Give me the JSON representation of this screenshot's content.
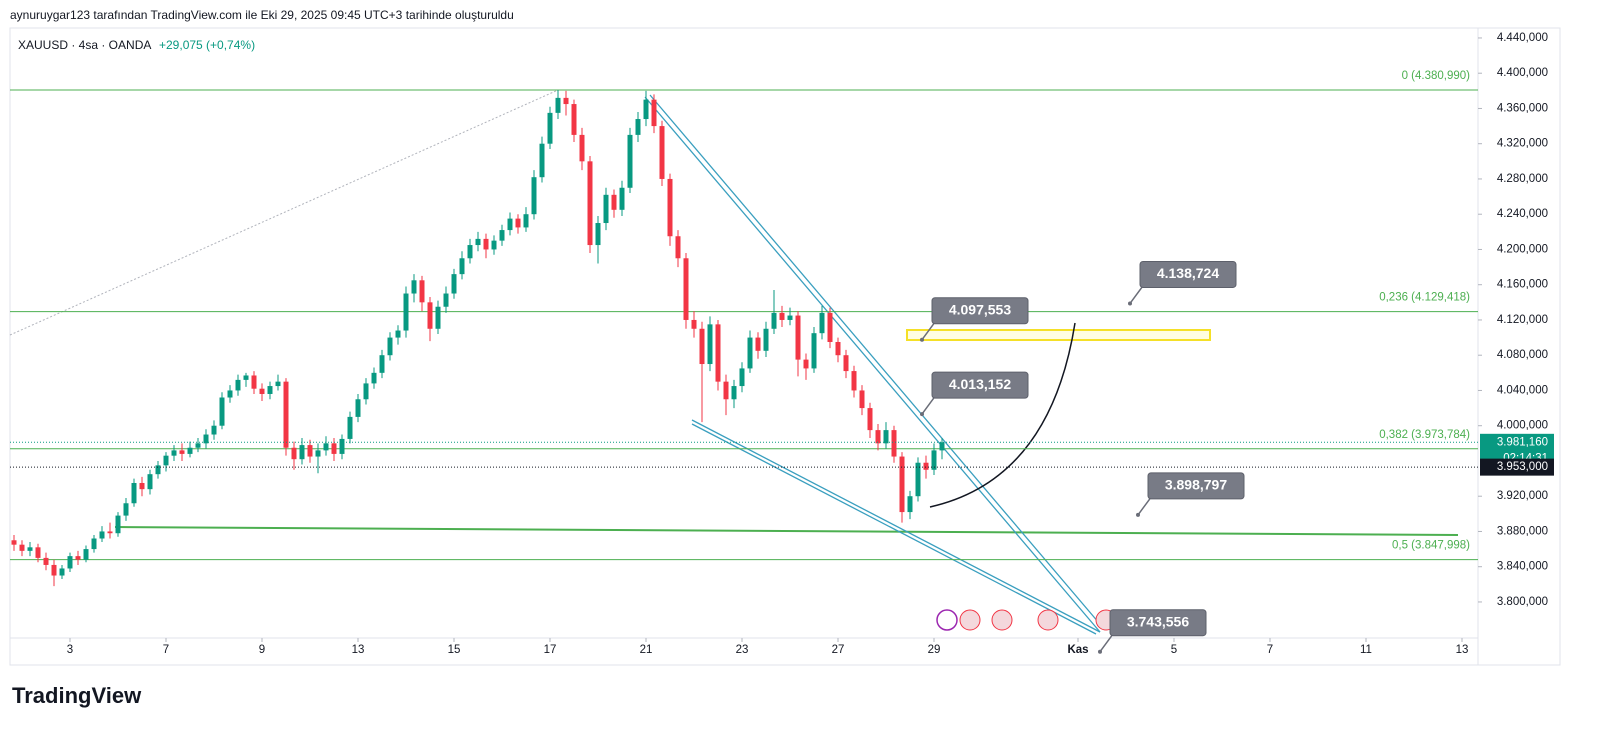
{
  "header": {
    "credit": "aynuruygar123 tarafından TradingView.com ile Eki 29, 2025 09:45 UTC+3 tarihinde oluşturuldu",
    "symbol": "XAUUSD · 4sa · OANDA",
    "change": "+29,075 (+0,74%)",
    "logo": "TradingView"
  },
  "chart_data": {
    "type": "candlestick",
    "up_color": "#089981",
    "down_color": "#f23645",
    "xlim": [
      -0.5,
      183
    ],
    "ylim": [
      3759.1,
      4451.3
    ],
    "xticks": [
      {
        "value": 7,
        "label": "3"
      },
      {
        "value": 19,
        "label": "7"
      },
      {
        "value": 31,
        "label": "9"
      },
      {
        "value": 43,
        "label": "13"
      },
      {
        "value": 55,
        "label": "15"
      },
      {
        "value": 67,
        "label": "17"
      },
      {
        "value": 79,
        "label": "21"
      },
      {
        "value": 91,
        "label": "23"
      },
      {
        "value": 103,
        "label": "27"
      },
      {
        "value": 115,
        "label": "29"
      },
      {
        "value": 133,
        "label": "Kas"
      },
      {
        "value": 145,
        "label": "5"
      },
      {
        "value": 157,
        "label": "7"
      },
      {
        "value": 169,
        "label": "11"
      },
      {
        "value": 181,
        "label": "13"
      }
    ],
    "yticks": [
      {
        "value": 4440,
        "label": "4.440,000"
      },
      {
        "value": 4400,
        "label": "4.400,000"
      },
      {
        "value": 4360,
        "label": "4.360,000"
      },
      {
        "value": 4320,
        "label": "4.320,000"
      },
      {
        "value": 4280,
        "label": "4.280,000"
      },
      {
        "value": 4240,
        "label": "4.240,000"
      },
      {
        "value": 4200,
        "label": "4.200,000"
      },
      {
        "value": 4160,
        "label": "4.160,000"
      },
      {
        "value": 4120,
        "label": "4.120,000"
      },
      {
        "value": 4080,
        "label": "4.080,000"
      },
      {
        "value": 4040,
        "label": "4.040,000"
      },
      {
        "value": 4000,
        "label": "4.000,000"
      },
      {
        "value": 3920,
        "label": "3.920,000"
      },
      {
        "value": 3880,
        "label": "3.880,000"
      },
      {
        "value": 3840,
        "label": "3.840,000"
      },
      {
        "value": 3800,
        "label": "3.800,000"
      }
    ],
    "candles": [
      [
        3870,
        3876,
        3858,
        3865
      ],
      [
        3865,
        3870,
        3852,
        3858
      ],
      [
        3858,
        3868,
        3852,
        3862
      ],
      [
        3862,
        3866,
        3845,
        3850
      ],
      [
        3850,
        3856,
        3836,
        3842
      ],
      [
        3842,
        3848,
        3818,
        3830
      ],
      [
        3830,
        3842,
        3826,
        3838
      ],
      [
        3838,
        3856,
        3834,
        3852
      ],
      [
        3852,
        3858,
        3842,
        3848
      ],
      [
        3848,
        3864,
        3845,
        3860
      ],
      [
        3860,
        3876,
        3856,
        3872
      ],
      [
        3872,
        3886,
        3868,
        3880
      ],
      [
        3880,
        3890,
        3872,
        3878
      ],
      [
        3878,
        3902,
        3874,
        3898
      ],
      [
        3898,
        3918,
        3892,
        3912
      ],
      [
        3912,
        3940,
        3908,
        3935
      ],
      [
        3935,
        3942,
        3920,
        3928
      ],
      [
        3928,
        3950,
        3922,
        3945
      ],
      [
        3945,
        3960,
        3940,
        3955
      ],
      [
        3955,
        3970,
        3948,
        3966
      ],
      [
        3966,
        3978,
        3960,
        3972
      ],
      [
        3972,
        3980,
        3960,
        3968
      ],
      [
        3968,
        3982,
        3964,
        3975
      ],
      [
        3975,
        3986,
        3970,
        3980
      ],
      [
        3980,
        3996,
        3974,
        3990
      ],
      [
        3990,
        4006,
        3984,
        4000
      ],
      [
        4000,
        4038,
        3996,
        4032
      ],
      [
        4032,
        4046,
        4026,
        4040
      ],
      [
        4040,
        4058,
        4034,
        4052
      ],
      [
        4052,
        4060,
        4044,
        4057
      ],
      [
        4057,
        4062,
        4036,
        4042
      ],
      [
        4042,
        4048,
        4028,
        4036
      ],
      [
        4036,
        4050,
        4030,
        4045
      ],
      [
        4045,
        4058,
        4040,
        4050
      ],
      [
        4050,
        4054,
        3966,
        3975
      ],
      [
        3975,
        3982,
        3950,
        3962
      ],
      [
        3962,
        3986,
        3956,
        3978
      ],
      [
        3978,
        3984,
        3958,
        3965
      ],
      [
        3965,
        3980,
        3946,
        3972
      ],
      [
        3972,
        3988,
        3966,
        3980
      ],
      [
        3980,
        3986,
        3960,
        3968
      ],
      [
        3968,
        3990,
        3962,
        3985
      ],
      [
        3985,
        4016,
        3980,
        4010
      ],
      [
        4010,
        4036,
        4004,
        4030
      ],
      [
        4030,
        4054,
        4024,
        4048
      ],
      [
        4048,
        4066,
        4042,
        4060
      ],
      [
        4060,
        4086,
        4054,
        4080
      ],
      [
        4080,
        4106,
        4074,
        4100
      ],
      [
        4100,
        4114,
        4092,
        4108
      ],
      [
        4108,
        4158,
        4100,
        4150
      ],
      [
        4150,
        4172,
        4140,
        4165
      ],
      [
        4165,
        4170,
        4130,
        4140
      ],
      [
        4140,
        4146,
        4096,
        4110
      ],
      [
        4110,
        4142,
        4104,
        4135
      ],
      [
        4135,
        4158,
        4128,
        4150
      ],
      [
        4150,
        4178,
        4144,
        4172
      ],
      [
        4172,
        4198,
        4166,
        4190
      ],
      [
        4190,
        4212,
        4184,
        4205
      ],
      [
        4205,
        4220,
        4198,
        4212
      ],
      [
        4212,
        4218,
        4190,
        4200
      ],
      [
        4200,
        4216,
        4194,
        4210
      ],
      [
        4210,
        4228,
        4204,
        4222
      ],
      [
        4222,
        4242,
        4216,
        4235
      ],
      [
        4235,
        4240,
        4218,
        4225
      ],
      [
        4225,
        4248,
        4220,
        4240
      ],
      [
        4240,
        4290,
        4234,
        4282
      ],
      [
        4282,
        4328,
        4276,
        4320
      ],
      [
        4320,
        4362,
        4314,
        4355
      ],
      [
        4355,
        4381,
        4348,
        4372
      ],
      [
        4372,
        4380,
        4352,
        4365
      ],
      [
        4365,
        4370,
        4322,
        4330
      ],
      [
        4330,
        4338,
        4290,
        4300
      ],
      [
        4300,
        4306,
        4196,
        4205
      ],
      [
        4205,
        4238,
        4184,
        4230
      ],
      [
        4230,
        4270,
        4222,
        4262
      ],
      [
        4262,
        4268,
        4236,
        4245
      ],
      [
        4245,
        4278,
        4238,
        4270
      ],
      [
        4270,
        4338,
        4264,
        4330
      ],
      [
        4330,
        4356,
        4322,
        4348
      ],
      [
        4348,
        4380,
        4340,
        4370
      ],
      [
        4370,
        4376,
        4332,
        4340
      ],
      [
        4340,
        4346,
        4272,
        4280
      ],
      [
        4280,
        4286,
        4204,
        4215
      ],
      [
        4215,
        4222,
        4180,
        4190
      ],
      [
        4190,
        4196,
        4110,
        4120
      ],
      [
        4120,
        4130,
        4100,
        4110
      ],
      [
        4110,
        4118,
        4004,
        4070
      ],
      [
        4070,
        4124,
        4062,
        4115
      ],
      [
        4115,
        4120,
        4040,
        4050
      ],
      [
        4050,
        4058,
        4012,
        4030
      ],
      [
        4030,
        4052,
        4020,
        4045
      ],
      [
        4045,
        4072,
        4038,
        4065
      ],
      [
        4065,
        4108,
        4060,
        4100
      ],
      [
        4100,
        4106,
        4076,
        4085
      ],
      [
        4085,
        4118,
        4078,
        4110
      ],
      [
        4110,
        4154,
        4104,
        4128
      ],
      [
        4128,
        4136,
        4112,
        4120
      ],
      [
        4120,
        4134,
        4114,
        4125
      ],
      [
        4125,
        4130,
        4056,
        4075
      ],
      [
        4075,
        4082,
        4052,
        4065
      ],
      [
        4065,
        4112,
        4060,
        4105
      ],
      [
        4105,
        4136,
        4098,
        4128
      ],
      [
        4128,
        4134,
        4088,
        4095
      ],
      [
        4095,
        4100,
        4072,
        4080
      ],
      [
        4080,
        4086,
        4054,
        4062
      ],
      [
        4062,
        4068,
        4032,
        4040
      ],
      [
        4040,
        4046,
        4012,
        4020
      ],
      [
        4020,
        4026,
        3986,
        3995
      ],
      [
        3995,
        4002,
        3972,
        3980
      ],
      [
        3980,
        4004,
        3974,
        3995
      ],
      [
        3995,
        4000,
        3958,
        3965
      ],
      [
        3965,
        3970,
        3890,
        3902
      ],
      [
        3902,
        3926,
        3894,
        3920
      ],
      [
        3920,
        3964,
        3914,
        3958
      ],
      [
        3958,
        3966,
        3940,
        3950
      ],
      [
        3950,
        3980,
        3944,
        3972
      ],
      [
        3972,
        3986,
        3962,
        3981.16
      ]
    ],
    "fib_levels": [
      {
        "value": 4380.99,
        "label": "0 (4.380,990)"
      },
      {
        "value": 4129.418,
        "label": "0,236 (4.129,418)"
      },
      {
        "value": 3973.784,
        "label": "0,382 (3.973,784)"
      },
      {
        "value": 3847.998,
        "label": "0,5 (3.847,998)"
      }
    ],
    "fib_color": "#4caf50",
    "price_tags": [
      {
        "value": 3981.16,
        "label": "3.981,160",
        "countdown": "02:14:31",
        "color": "#089981"
      },
      {
        "value": 3953,
        "label": "3.953,000",
        "color": "#131722"
      }
    ],
    "annotations": [
      {
        "value": 4138.724,
        "label": "4.138,724"
      },
      {
        "value": 4097.553,
        "label": "4.097,553"
      },
      {
        "value": 4013.152,
        "label": "4.013,152"
      },
      {
        "value": 3898.797,
        "label": "3.898,797"
      },
      {
        "value": 3743.556,
        "label": "3.743,556"
      }
    ]
  }
}
